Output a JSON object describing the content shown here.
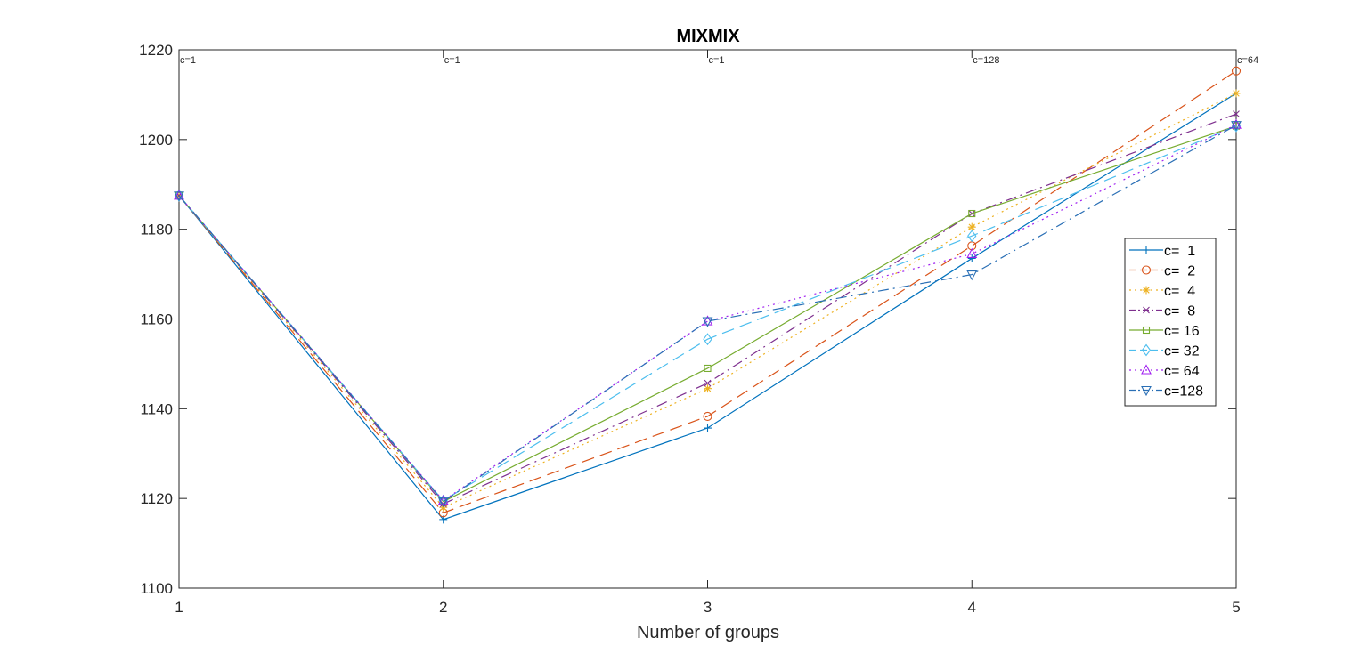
{
  "chart_data": {
    "type": "line",
    "title": "MIXMIX",
    "xlabel": "Number of groups",
    "ylabel": "",
    "x": [
      1,
      2,
      3,
      4,
      5
    ],
    "xlim": [
      1,
      5
    ],
    "ylim": [
      1100,
      1220
    ],
    "xticks": [
      "1",
      "2",
      "3",
      "4",
      "5"
    ],
    "yticks": [
      "1100",
      "1120",
      "1140",
      "1160",
      "1180",
      "1200",
      "1220"
    ],
    "grid": false,
    "legend_position": "right",
    "annotations": [
      {
        "x": 1,
        "text": "c=1"
      },
      {
        "x": 2,
        "text": "c=1"
      },
      {
        "x": 3,
        "text": "c=1"
      },
      {
        "x": 4,
        "text": "c=128"
      },
      {
        "x": 5,
        "text": "c=64"
      }
    ],
    "series": [
      {
        "name": "c=  1",
        "values": [
          1187.5,
          1115.3,
          1135.7,
          1173.5,
          1210.3
        ],
        "color": "#0072BD",
        "dash": "solid",
        "marker": "plus"
      },
      {
        "name": "c=  2",
        "values": [
          1187.5,
          1116.8,
          1138.3,
          1176.3,
          1215.3
        ],
        "color": "#D95319",
        "dash": "dashed",
        "marker": "circle"
      },
      {
        "name": "c=  4",
        "values": [
          1187.5,
          1118.0,
          1144.5,
          1180.5,
          1210.3
        ],
        "color": "#EDB120",
        "dash": "dotted",
        "marker": "asterisk"
      },
      {
        "name": "c=  8",
        "values": [
          1187.5,
          1118.8,
          1145.7,
          1183.5,
          1205.7
        ],
        "color": "#7E2F8E",
        "dash": "dashdot",
        "marker": "x"
      },
      {
        "name": "c= 16",
        "values": [
          1187.5,
          1119.3,
          1149.0,
          1183.5,
          1203.0
        ],
        "color": "#77AC30",
        "dash": "solid",
        "marker": "square"
      },
      {
        "name": "c= 32",
        "values": [
          1187.5,
          1119.5,
          1155.5,
          1178.5,
          1203.0
        ],
        "color": "#4DBEEE",
        "dash": "dashed",
        "marker": "diamond"
      },
      {
        "name": "c= 64",
        "values": [
          1187.5,
          1119.5,
          1159.5,
          1174.5,
          1203.3
        ],
        "color": "#A2142F",
        "dash": "dotted",
        "marker": "triangle-up",
        "marker_color": "#A020F0",
        "line_color": "#A020F0"
      },
      {
        "name": "c=128",
        "values": [
          1187.5,
          1119.3,
          1159.5,
          1169.9,
          1203.2
        ],
        "color": "#0072BD",
        "dash": "dashdot",
        "marker": "triangle-down",
        "line_color": "#2A6FB5"
      }
    ]
  }
}
